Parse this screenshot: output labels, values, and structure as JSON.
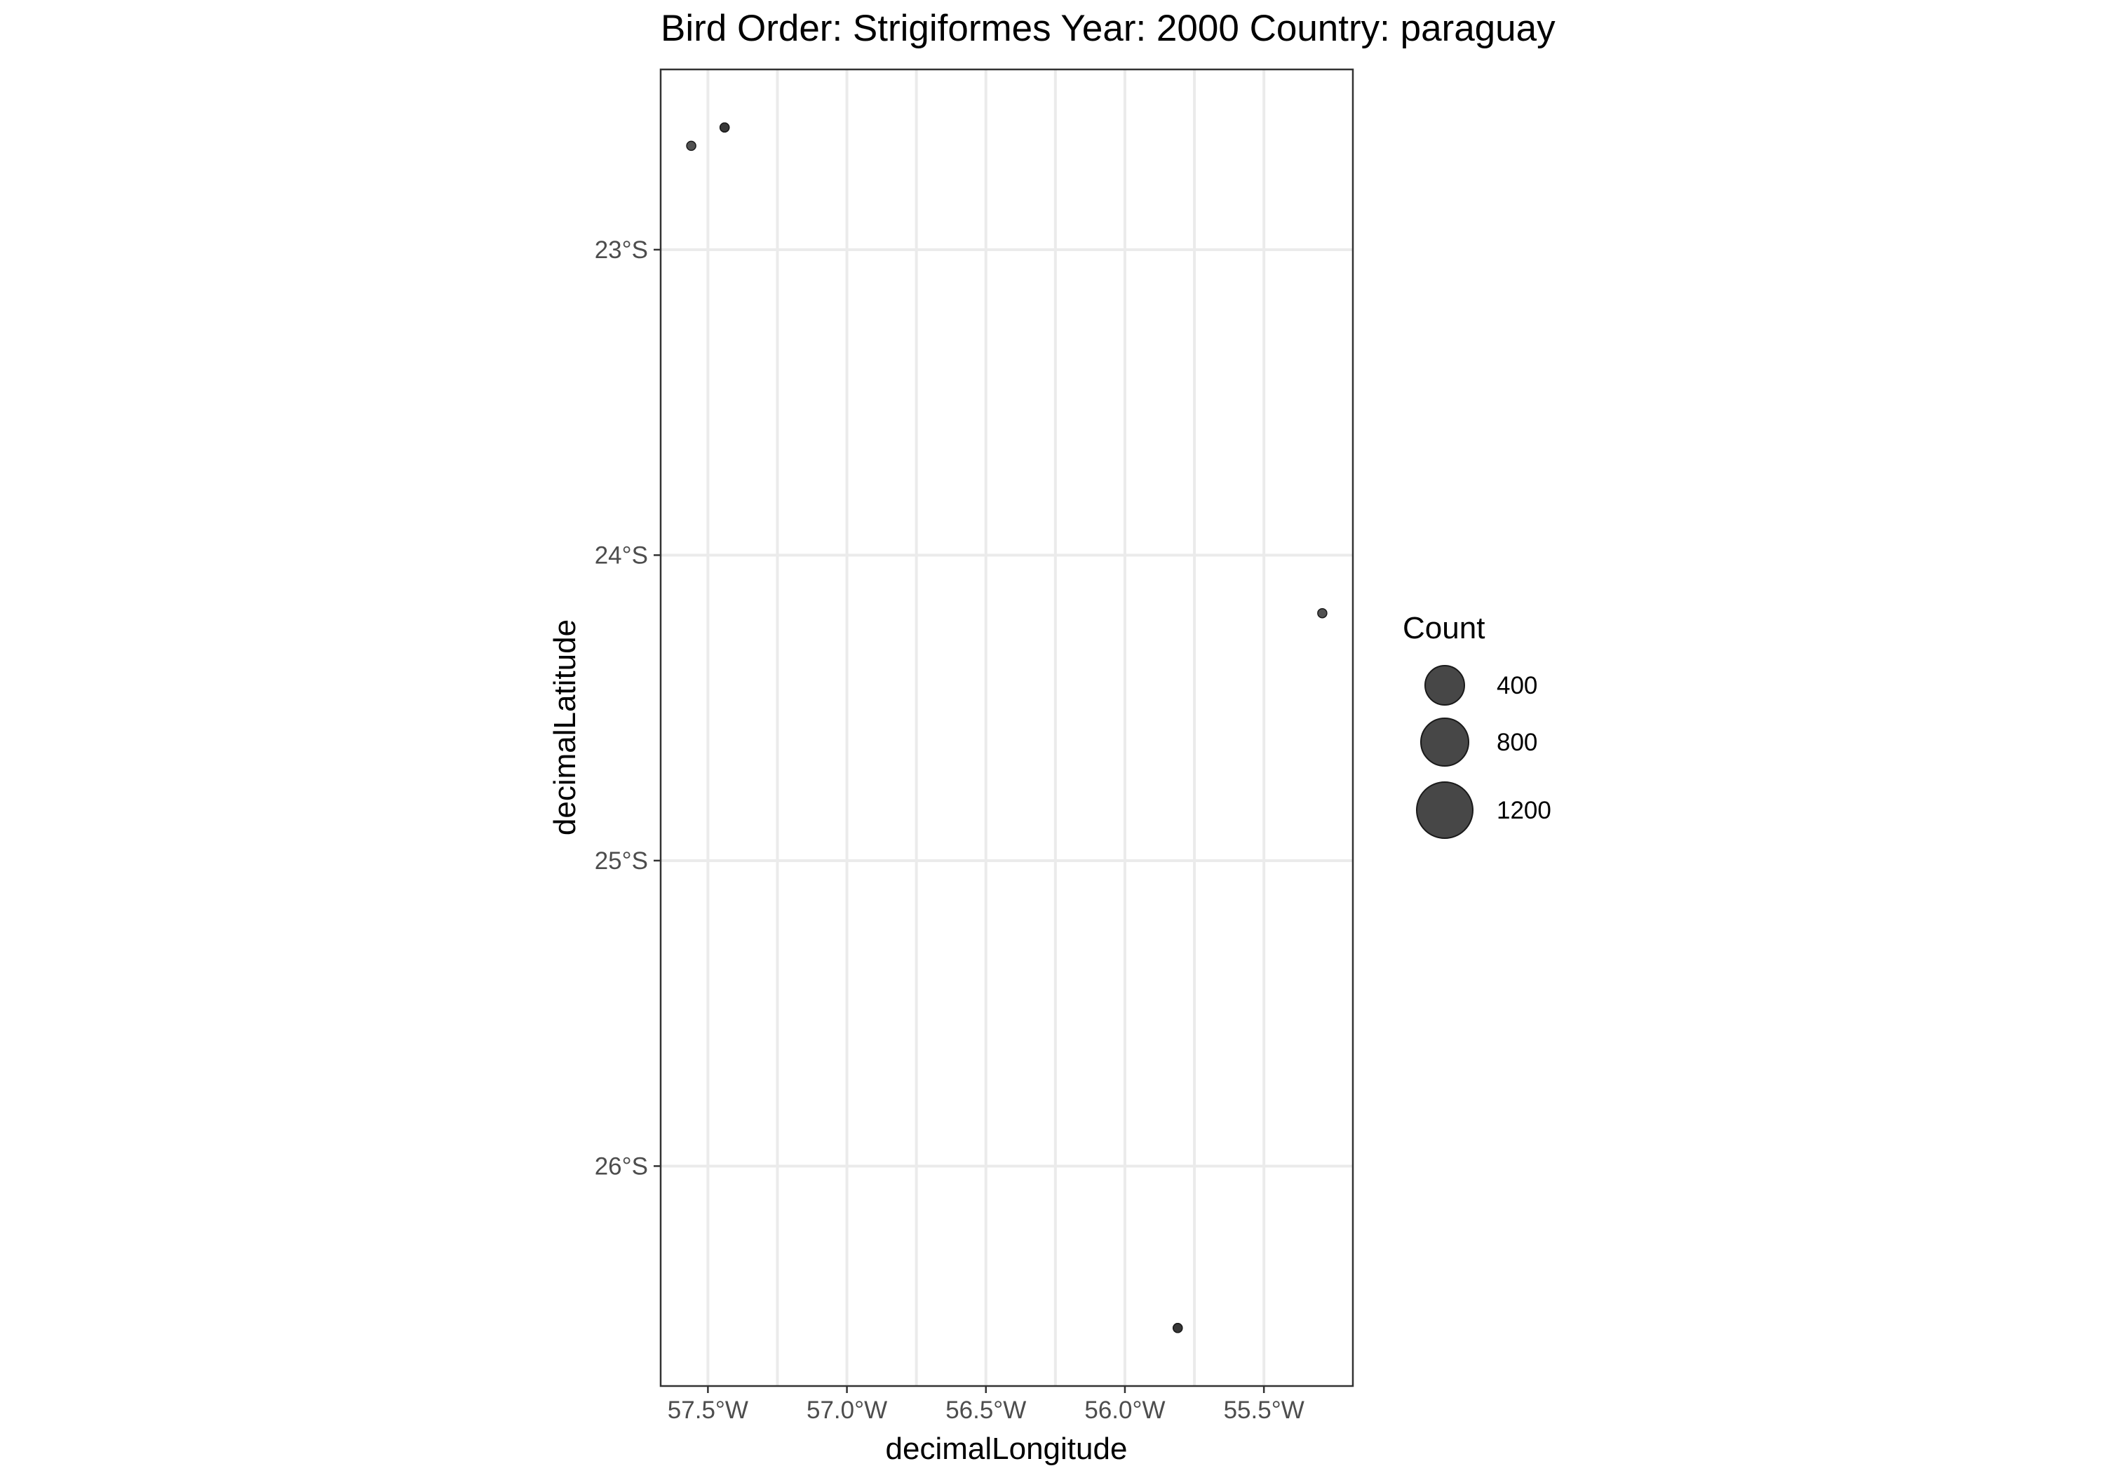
{
  "chart_data": {
    "type": "scatter",
    "title": "Bird Order: Strigiformes Year: 2000 Country: paraguay",
    "xlabel": "decimalLongitude",
    "ylabel": "decimalLatitude",
    "xlim": [
      -57.67,
      -55.18
    ],
    "ylim": [
      -26.72,
      -22.41
    ],
    "x_ticks": [
      {
        "value": -57.5,
        "label": "57.5°W"
      },
      {
        "value": -57.0,
        "label": "57.0°W"
      },
      {
        "value": -56.5,
        "label": "56.5°W"
      },
      {
        "value": -56.0,
        "label": "56.0°W"
      },
      {
        "value": -55.5,
        "label": "55.5°W"
      }
    ],
    "y_ticks": [
      {
        "value": -23,
        "label": "23°S"
      },
      {
        "value": -24,
        "label": "24°S"
      },
      {
        "value": -25,
        "label": "25°S"
      },
      {
        "value": -26,
        "label": "26°S"
      }
    ],
    "grid": true,
    "points": [
      {
        "x": -57.56,
        "y": -22.66,
        "count": 1
      },
      {
        "x": -57.44,
        "y": -22.6,
        "count": 1
      },
      {
        "x": -57.44,
        "y": -22.6,
        "count": 1
      },
      {
        "x": -55.29,
        "y": -24.19,
        "count": 1
      },
      {
        "x": -55.81,
        "y": -26.53,
        "count": 1
      },
      {
        "x": -55.81,
        "y": -26.53,
        "count": 1
      }
    ],
    "legend": {
      "title": "Count",
      "placement": "right",
      "entries": [
        {
          "value": 400,
          "label": "400"
        },
        {
          "value": 800,
          "label": "800"
        },
        {
          "value": 1200,
          "label": "1200"
        }
      ]
    },
    "colors": {
      "point_fill": "#333333",
      "point_stroke": "#1a1a1a",
      "grid": "#ebebeb",
      "border": "#333333",
      "tick_label": "#4d4d4d"
    }
  }
}
